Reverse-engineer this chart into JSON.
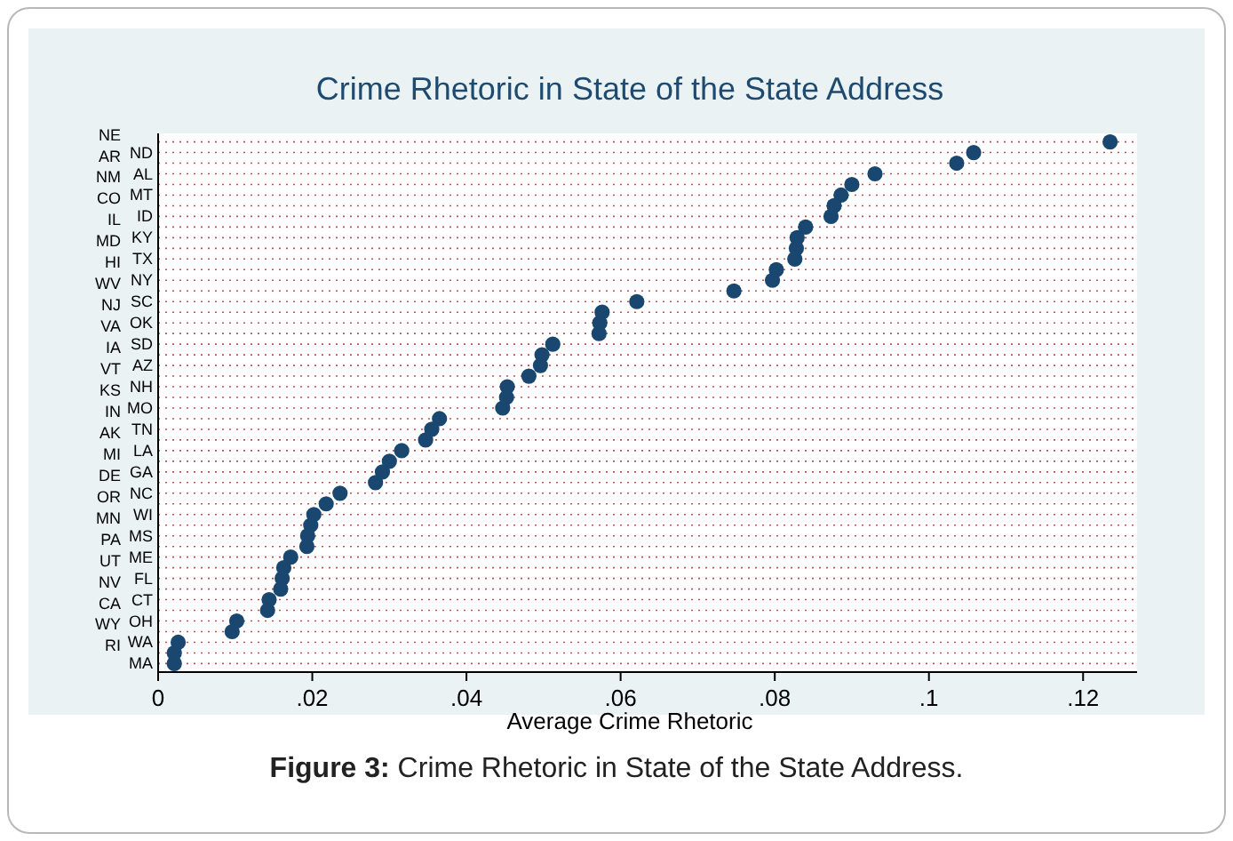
{
  "chart_data": {
    "type": "scatter",
    "title": "Crime Rhetoric in State of the State Address",
    "xlabel": "Average Crime Rhetoric",
    "orientation": "horizontal",
    "categories": [
      "NE",
      "ND",
      "AR",
      "AL",
      "NM",
      "MT",
      "CO",
      "ID",
      "IL",
      "KY",
      "MD",
      "TX",
      "HI",
      "NY",
      "WV",
      "SC",
      "NJ",
      "OK",
      "VA",
      "SD",
      "IA",
      "AZ",
      "VT",
      "NH",
      "KS",
      "MO",
      "IN",
      "TN",
      "AK",
      "LA",
      "MI",
      "GA",
      "DE",
      "NC",
      "OR",
      "WI",
      "MN",
      "MS",
      "PA",
      "ME",
      "UT",
      "FL",
      "NV",
      "CT",
      "CA",
      "OH",
      "WY",
      "WA",
      "RI",
      "MA"
    ],
    "values": [
      0.1235,
      0.1058,
      0.1036,
      0.093,
      0.09,
      0.0886,
      0.0877,
      0.0873,
      0.084,
      0.0829,
      0.0828,
      0.0826,
      0.0802,
      0.0797,
      0.0747,
      0.0621,
      0.0576,
      0.0573,
      0.0572,
      0.0512,
      0.0498,
      0.0496,
      0.0481,
      0.0453,
      0.0452,
      0.0447,
      0.0365,
      0.0355,
      0.0347,
      0.0316,
      0.03,
      0.0291,
      0.0282,
      0.0236,
      0.0218,
      0.0202,
      0.0198,
      0.0194,
      0.0193,
      0.0172,
      0.0163,
      0.0161,
      0.0159,
      0.0144,
      0.0142,
      0.0102,
      0.0096,
      0.0026,
      0.0021,
      0.0021
    ],
    "color": "#1a476f",
    "marker": "circle",
    "grid": "y",
    "xlim": [
      0,
      0.127
    ],
    "xticks": [
      0,
      {
        "value": 0.02,
        "label": ".02"
      },
      {
        "value": 0.04,
        "label": ".04"
      },
      {
        "value": 0.06,
        "label": ".06"
      },
      {
        "value": 0.08,
        "label": ".08"
      },
      {
        "value": 0.1,
        "label": ".1"
      },
      {
        "value": 0.12,
        "label": ".12"
      }
    ],
    "annotations": [
      "Figure 3: Crime Rhetoric in State of the State Address."
    ]
  }
}
